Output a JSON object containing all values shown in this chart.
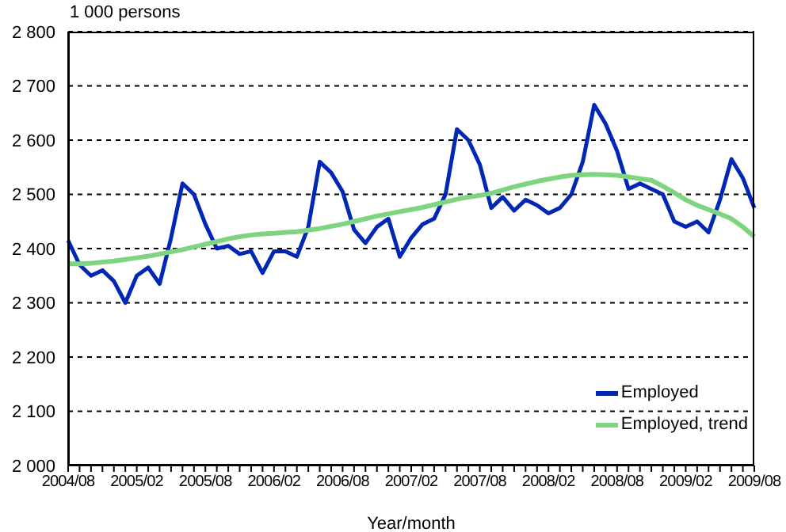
{
  "chart_data": {
    "type": "line",
    "ylabel": "1 000 persons",
    "xlabel": "Year/month",
    "categories": [
      "2004/08",
      null,
      null,
      null,
      null,
      null,
      "2005/02",
      null,
      null,
      null,
      null,
      null,
      "2005/08",
      null,
      null,
      null,
      null,
      null,
      "2006/02",
      null,
      null,
      null,
      null,
      null,
      "2006/08",
      null,
      null,
      null,
      null,
      null,
      "2007/02",
      null,
      null,
      null,
      null,
      null,
      "2007/08",
      null,
      null,
      null,
      null,
      null,
      "2008/02",
      null,
      null,
      null,
      null,
      null,
      "2008/08",
      null,
      null,
      null,
      null,
      null,
      "2009/02",
      null,
      null,
      null,
      null,
      null,
      "2009/08"
    ],
    "series": [
      {
        "name": "Employed",
        "color": "#0028b4",
        "values": [
          2415,
          2370,
          2350,
          2360,
          2340,
          2300,
          2350,
          2365,
          2335,
          2420,
          2520,
          2500,
          2445,
          2400,
          2405,
          2390,
          2395,
          2355,
          2395,
          2395,
          2385,
          2440,
          2560,
          2540,
          2505,
          2435,
          2410,
          2440,
          2455,
          2385,
          2420,
          2445,
          2455,
          2500,
          2620,
          2600,
          2555,
          2475,
          2495,
          2470,
          2490,
          2480,
          2465,
          2475,
          2500,
          2560,
          2665,
          2630,
          2580,
          2510,
          2520,
          2510,
          2500,
          2450,
          2440,
          2450,
          2430,
          2490,
          2565,
          2530,
          2475
        ]
      },
      {
        "name": "Employed, trend",
        "color": "#7fd47f",
        "values": [
          2372,
          2372,
          2373,
          2375,
          2377,
          2380,
          2383,
          2386,
          2390,
          2394,
          2398,
          2403,
          2408,
          2413,
          2418,
          2422,
          2425,
          2427,
          2428,
          2430,
          2431,
          2434,
          2437,
          2441,
          2445,
          2450,
          2455,
          2460,
          2464,
          2468,
          2472,
          2476,
          2481,
          2486,
          2491,
          2495,
          2498,
          2502,
          2508,
          2514,
          2519,
          2524,
          2528,
          2532,
          2535,
          2536,
          2537,
          2536,
          2535,
          2532,
          2529,
          2526,
          2515,
          2503,
          2490,
          2480,
          2472,
          2464,
          2455,
          2440,
          2422
        ]
      }
    ],
    "ylim": [
      2000,
      2800
    ],
    "yticks": [
      {
        "value": 2000,
        "label": "2 000"
      },
      {
        "value": 2100,
        "label": "2 100"
      },
      {
        "value": 2200,
        "label": "2 200"
      },
      {
        "value": 2300,
        "label": "2 300"
      },
      {
        "value": 2400,
        "label": "2 400"
      },
      {
        "value": 2500,
        "label": "2 500"
      },
      {
        "value": 2600,
        "label": "2 600"
      },
      {
        "value": 2700,
        "label": "2 700"
      },
      {
        "value": 2800,
        "label": "2 800"
      }
    ],
    "grid": "y",
    "legend": "bottom right",
    "marker": "none",
    "line_style": "solid"
  }
}
